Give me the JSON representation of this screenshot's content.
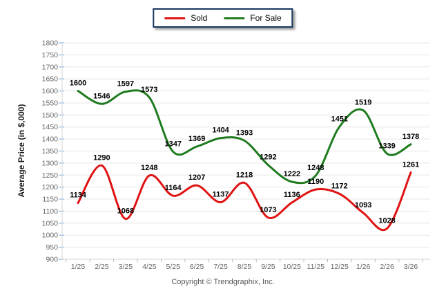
{
  "footer": {
    "copyright": "Copyright © Trendgraphix, Inc."
  },
  "chart_data": {
    "type": "line",
    "title": "",
    "xlabel": "",
    "ylabel": "Average Price (in $,000)",
    "categories": [
      "1/25",
      "2/25",
      "3/25",
      "4/25",
      "5/25",
      "6/25",
      "7/25",
      "8/25",
      "9/25",
      "10/25",
      "11/25",
      "12/25",
      "1/26",
      "2/26",
      "3/26"
    ],
    "series": [
      {
        "name": "Sold",
        "color": "#e01212",
        "values": [
          1134,
          1290,
          1068,
          1248,
          1164,
          1207,
          1137,
          1218,
          1073,
          1136,
          1190,
          1172,
          1093,
          1028,
          1261
        ]
      },
      {
        "name": "For Sale",
        "color": "#1e7b1e",
        "values": [
          1600,
          1546,
          1597,
          1573,
          1347,
          1369,
          1404,
          1393,
          1292,
          1222,
          1248,
          1451,
          1519,
          1339,
          1378
        ]
      }
    ],
    "ylim": [
      900,
      1800
    ],
    "ytick_step": 50,
    "grid": true,
    "smooth": true,
    "data_labels": true,
    "legend_position": "top-center",
    "colors": {
      "gridline": "#e7e7e7",
      "axis_line": "#d4d4d4",
      "y_tick": "#9dc3e6",
      "x_tick": "#b5b5b5",
      "tick_label": "#666666",
      "value_label": "#000000",
      "legend_border": "#17375e"
    }
  }
}
